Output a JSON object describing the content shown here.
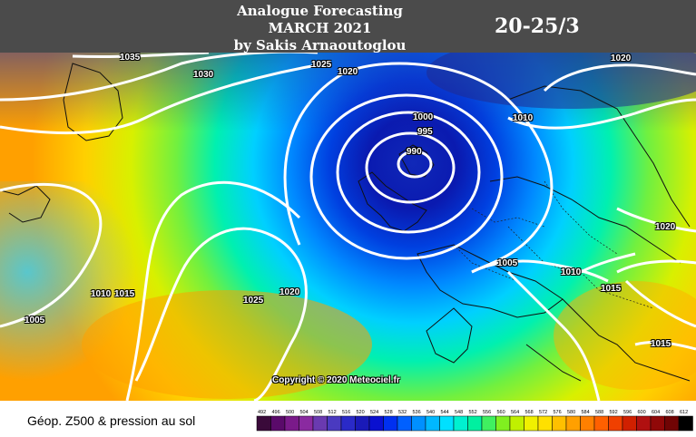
{
  "header": {
    "title_line1": "Analogue Forecasting",
    "title_line2": "MARCH 2021",
    "title_line3": "by Sakis Arnaoutoglou",
    "date_range": "20-25/3"
  },
  "footer": {
    "legend_label": "Géop. Z500 & pression au sol",
    "copyright": "Copyright © 2020 Meteociel.fr"
  },
  "pressure_labels": [
    "1035",
    "1030",
    "1025",
    "1020",
    "1020",
    "1000",
    "995",
    "990",
    "1010",
    "1020",
    "1005",
    "1010",
    "1015",
    "1010",
    "1015",
    "1025",
    "1020",
    "1005",
    "1015"
  ],
  "colorbar": {
    "ticks": [
      "492",
      "496",
      "500",
      "504",
      "508",
      "512",
      "516",
      "520",
      "524",
      "528",
      "532",
      "536",
      "540",
      "544",
      "548",
      "552",
      "556",
      "560",
      "564",
      "568",
      "572",
      "576",
      "580",
      "584",
      "588",
      "592",
      "596",
      "600",
      "604",
      "608",
      "612"
    ],
    "colors": [
      "#3a0a3a",
      "#5a0a6a",
      "#7a1a8a",
      "#8a2aa0",
      "#6a3ab0",
      "#4a3ac0",
      "#2a2ac8",
      "#1a1ab8",
      "#0a10d0",
      "#0030f0",
      "#0060ff",
      "#0090ff",
      "#00b8ff",
      "#00e0ff",
      "#00f0d0",
      "#00f0a0",
      "#40f060",
      "#80f020",
      "#c0f000",
      "#f0f000",
      "#ffe000",
      "#ffc000",
      "#ffa000",
      "#ff8000",
      "#ff6000",
      "#f04000",
      "#d02000",
      "#b01010",
      "#900808",
      "#700404",
      "#000000"
    ]
  }
}
